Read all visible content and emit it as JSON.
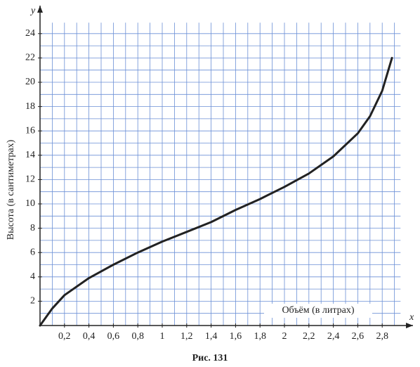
{
  "chart_data": {
    "type": "line",
    "x_label": "Объём (в литрах)",
    "y_label": "Высота (в сантиметрах)",
    "x_axis_name": "x",
    "y_axis_name": "y",
    "caption": "Рис. 131",
    "xlim": [
      0,
      2.95
    ],
    "ylim": [
      0,
      24.9
    ],
    "xticks": [
      {
        "value": 0.2,
        "label": "0,2"
      },
      {
        "value": 0.4,
        "label": "0,4"
      },
      {
        "value": 0.6,
        "label": "0,6"
      },
      {
        "value": 0.8,
        "label": "0,8"
      },
      1,
      {
        "value": 1.2,
        "label": "1,2"
      },
      {
        "value": 1.4,
        "label": "1,4"
      },
      {
        "value": 1.6,
        "label": "1,6"
      },
      {
        "value": 1.8,
        "label": "1,8"
      },
      2,
      {
        "value": 2.2,
        "label": "2,2"
      },
      {
        "value": 2.4,
        "label": "2,4"
      },
      {
        "value": 2.6,
        "label": "2,6"
      },
      {
        "value": 2.8,
        "label": "2,8"
      }
    ],
    "yticks": [
      2,
      4,
      6,
      8,
      10,
      12,
      14,
      16,
      18,
      20,
      22,
      24
    ],
    "minor_grid": {
      "x": 0.1,
      "y": 1
    },
    "grid": true,
    "color": "#222222",
    "x": [
      0,
      0.1,
      0.2,
      0.4,
      0.6,
      0.8,
      1.0,
      1.2,
      1.4,
      1.6,
      1.8,
      2.0,
      2.2,
      2.4,
      2.6,
      2.7,
      2.8,
      2.88
    ],
    "values": [
      0,
      1.4,
      2.5,
      3.9,
      5,
      6,
      6.9,
      7.7,
      8.5,
      9.5,
      10.4,
      11.4,
      12.5,
      13.9,
      15.8,
      17.2,
      19.3,
      22
    ]
  }
}
